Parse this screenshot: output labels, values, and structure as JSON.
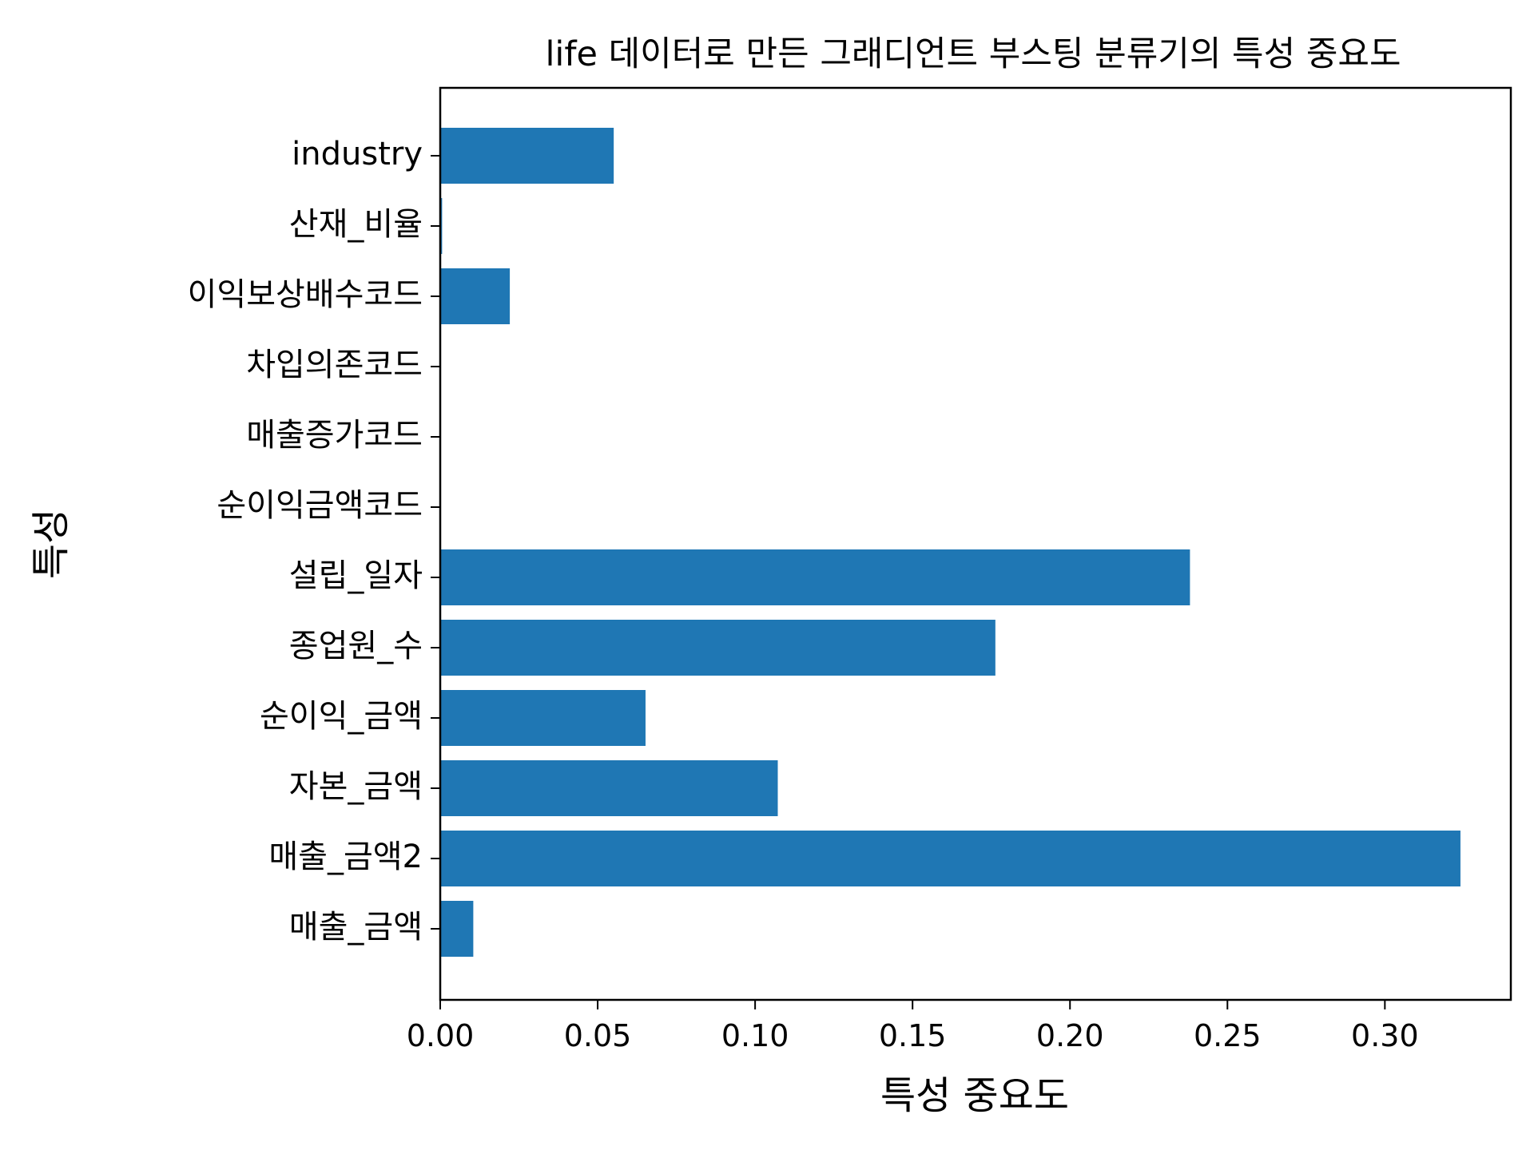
{
  "colors": {
    "bar": "#1f77b4",
    "axis": "#000000",
    "background": "#ffffff"
  },
  "chart_data": {
    "type": "bar",
    "orientation": "horizontal",
    "title": "life 데이터로 만든 그래디언트 부스팅 분류기의 특성 중요도",
    "xlabel": "특성 중요도",
    "ylabel": "특성",
    "categories": [
      "매출_금액",
      "매출_금액2",
      "자본_금액",
      "순이익_금액",
      "종업원_수",
      "설립_일자",
      "순이익금액코드",
      "매출증가코드",
      "차입의존코드",
      "이익보상배수코드",
      "산재_비율",
      "industry"
    ],
    "values": [
      0.0105,
      0.324,
      0.1072,
      0.0652,
      0.1763,
      0.2381,
      0.0,
      0.0,
      0.0,
      0.0221,
      0.0006,
      0.0551
    ],
    "xlim": [
      0,
      0.34
    ],
    "xticks": [
      "0.00",
      "0.05",
      "0.10",
      "0.15",
      "0.20",
      "0.25",
      "0.30"
    ],
    "grid": false,
    "legend": false
  }
}
